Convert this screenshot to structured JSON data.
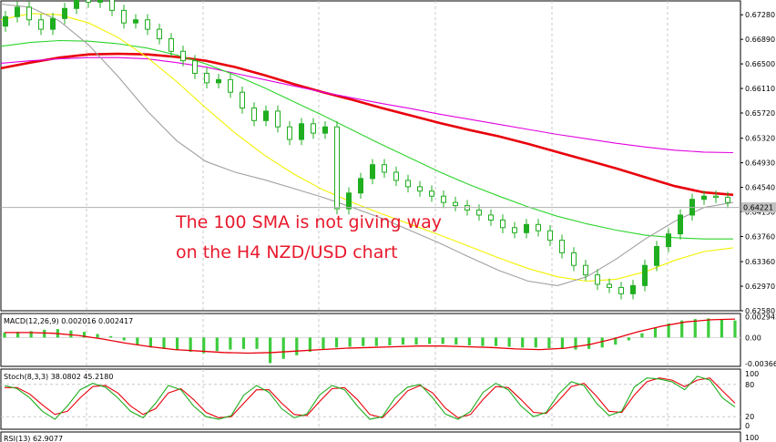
{
  "chart_data": [
    {
      "type": "line",
      "panel": "price",
      "title": "",
      "ylim": [
        0.6258,
        0.675
      ],
      "y_ticks": [
        "0.67280",
        "0.66890",
        "0.66500",
        "0.66110",
        "0.65720",
        "0.65320",
        "0.64930",
        "0.64540",
        "0.64150",
        "0.63760",
        "0.63360",
        "0.62970",
        "0.62580"
      ],
      "current_price": 0.64221,
      "current_price_label": "0.64221",
      "annotation": [
        "The 100 SMA is not giving way",
        "on the H4 NZD/USD chart"
      ],
      "candles": [
        {
          "t": 0,
          "o": 0.671,
          "c": 0.6725
        },
        {
          "t": 1,
          "o": 0.6725,
          "c": 0.674
        },
        {
          "t": 2,
          "o": 0.674,
          "c": 0.672
        },
        {
          "t": 3,
          "o": 0.672,
          "c": 0.6705
        },
        {
          "t": 4,
          "o": 0.6705,
          "c": 0.6722
        },
        {
          "t": 5,
          "o": 0.6722,
          "c": 0.6738
        },
        {
          "t": 6,
          "o": 0.6738,
          "c": 0.6755
        },
        {
          "t": 7,
          "o": 0.6755,
          "c": 0.6748
        },
        {
          "t": 8,
          "o": 0.6748,
          "c": 0.676
        },
        {
          "t": 9,
          "o": 0.676,
          "c": 0.6735
        },
        {
          "t": 10,
          "o": 0.6735,
          "c": 0.6715
        },
        {
          "t": 11,
          "o": 0.6715,
          "c": 0.672
        },
        {
          "t": 12,
          "o": 0.672,
          "c": 0.6705
        },
        {
          "t": 13,
          "o": 0.6705,
          "c": 0.669
        },
        {
          "t": 14,
          "o": 0.669,
          "c": 0.667
        },
        {
          "t": 15,
          "o": 0.667,
          "c": 0.6655
        },
        {
          "t": 16,
          "o": 0.6655,
          "c": 0.6635
        },
        {
          "t": 17,
          "o": 0.6635,
          "c": 0.662
        },
        {
          "t": 18,
          "o": 0.662,
          "c": 0.6625
        },
        {
          "t": 19,
          "o": 0.6625,
          "c": 0.6605
        },
        {
          "t": 20,
          "o": 0.6605,
          "c": 0.658
        },
        {
          "t": 21,
          "o": 0.658,
          "c": 0.656
        },
        {
          "t": 22,
          "o": 0.656,
          "c": 0.6575
        },
        {
          "t": 23,
          "o": 0.6575,
          "c": 0.655
        },
        {
          "t": 24,
          "o": 0.655,
          "c": 0.653
        },
        {
          "t": 25,
          "o": 0.653,
          "c": 0.6555
        },
        {
          "t": 26,
          "o": 0.6555,
          "c": 0.654
        },
        {
          "t": 27,
          "o": 0.654,
          "c": 0.655
        },
        {
          "t": 28,
          "o": 0.655,
          "c": 0.642
        },
        {
          "t": 29,
          "o": 0.642,
          "c": 0.6445
        },
        {
          "t": 30,
          "o": 0.6445,
          "c": 0.6468
        },
        {
          "t": 31,
          "o": 0.6468,
          "c": 0.649
        },
        {
          "t": 32,
          "o": 0.649,
          "c": 0.6478
        },
        {
          "t": 33,
          "o": 0.6478,
          "c": 0.6465
        },
        {
          "t": 34,
          "o": 0.6465,
          "c": 0.6455
        },
        {
          "t": 35,
          "o": 0.6455,
          "c": 0.6448
        },
        {
          "t": 36,
          "o": 0.6448,
          "c": 0.644
        },
        {
          "t": 37,
          "o": 0.644,
          "c": 0.643
        },
        {
          "t": 38,
          "o": 0.643,
          "c": 0.6425
        },
        {
          "t": 39,
          "o": 0.6425,
          "c": 0.6418
        },
        {
          "t": 40,
          "o": 0.6418,
          "c": 0.641
        },
        {
          "t": 41,
          "o": 0.641,
          "c": 0.6402
        },
        {
          "t": 42,
          "o": 0.6402,
          "c": 0.639
        },
        {
          "t": 43,
          "o": 0.639,
          "c": 0.6382
        },
        {
          "t": 44,
          "o": 0.6382,
          "c": 0.6395
        },
        {
          "t": 45,
          "o": 0.6395,
          "c": 0.6385
        },
        {
          "t": 46,
          "o": 0.6385,
          "c": 0.637
        },
        {
          "t": 47,
          "o": 0.637,
          "c": 0.635
        },
        {
          "t": 48,
          "o": 0.635,
          "c": 0.633
        },
        {
          "t": 49,
          "o": 0.633,
          "c": 0.6315
        },
        {
          "t": 50,
          "o": 0.6315,
          "c": 0.63
        },
        {
          "t": 51,
          "o": 0.63,
          "c": 0.6295
        },
        {
          "t": 52,
          "o": 0.6295,
          "c": 0.6285
        },
        {
          "t": 53,
          "o": 0.6285,
          "c": 0.6298
        },
        {
          "t": 54,
          "o": 0.6298,
          "c": 0.633
        },
        {
          "t": 55,
          "o": 0.633,
          "c": 0.636
        },
        {
          "t": 56,
          "o": 0.636,
          "c": 0.638
        },
        {
          "t": 57,
          "o": 0.638,
          "c": 0.641
        },
        {
          "t": 58,
          "o": 0.641,
          "c": 0.6435
        },
        {
          "t": 59,
          "o": 0.6435,
          "c": 0.644
        },
        {
          "t": 60,
          "o": 0.644,
          "c": 0.6438
        },
        {
          "t": 61,
          "o": 0.6438,
          "c": 0.643
        }
      ],
      "series": [
        {
          "name": "",
          "color": "#e8000b",
          "values": [
            0.6643,
            0.6652,
            0.666,
            0.6665,
            0.6666,
            0.6665,
            0.6661,
            0.6655,
            0.6645,
            0.6632,
            0.6618,
            0.6605,
            0.6593,
            0.658,
            0.6568,
            0.6556,
            0.6545,
            0.6535,
            0.6523,
            0.651,
            0.6497,
            0.6484,
            0.647,
            0.6456,
            0.6446,
            0.6442
          ]
        },
        {
          "name": "",
          "color": "#e000e0",
          "values": [
            0.6651,
            0.6655,
            0.6658,
            0.666,
            0.666,
            0.6658,
            0.6652,
            0.6645,
            0.6635,
            0.6625,
            0.6615,
            0.6605,
            0.6596,
            0.6587,
            0.6579,
            0.657,
            0.6562,
            0.6554,
            0.6546,
            0.6538,
            0.6531,
            0.6524,
            0.6518,
            0.6513,
            0.651,
            0.6509
          ]
        },
        {
          "name": "",
          "color": "#2bd42b",
          "values": [
            0.6678,
            0.6684,
            0.6687,
            0.6686,
            0.6682,
            0.6675,
            0.6664,
            0.665,
            0.6632,
            0.6612,
            0.659,
            0.6568,
            0.6545,
            0.6522,
            0.65,
            0.6478,
            0.6458,
            0.644,
            0.6423,
            0.6408,
            0.6396,
            0.6386,
            0.6378,
            0.6374,
            0.6372,
            0.6372
          ]
        },
        {
          "name": "",
          "color": "#f2f200",
          "values": [
            0.672,
            0.673,
            0.6728,
            0.6715,
            0.6692,
            0.666,
            0.6622,
            0.658,
            0.654,
            0.6505,
            0.6475,
            0.645,
            0.643,
            0.6412,
            0.6395,
            0.6378,
            0.636,
            0.6342,
            0.6325,
            0.6312,
            0.6305,
            0.6308,
            0.632,
            0.6338,
            0.6352,
            0.6358
          ]
        },
        {
          "name": "",
          "color": "#a0a0a0",
          "values": [
            0.6745,
            0.674,
            0.6718,
            0.668,
            0.663,
            0.6575,
            0.6528,
            0.6495,
            0.6478,
            0.6466,
            0.6452,
            0.6438,
            0.6422,
            0.6405,
            0.6385,
            0.6365,
            0.6343,
            0.6322,
            0.6305,
            0.6298,
            0.6312,
            0.634,
            0.6372,
            0.64,
            0.6422,
            0.643
          ]
        }
      ]
    },
    {
      "type": "bar",
      "panel": "macd",
      "label": "MACD(12,26,9) 0.002016 0.002417",
      "y_ticks": [
        "0.002942",
        "0.00",
        "-0.003666"
      ],
      "values": [
        0.0007,
        0.0008,
        0.0009,
        0.0011,
        0.0012,
        0.001,
        0.0008,
        0.0005,
        0.0002,
        -0.0004,
        -0.001,
        -0.0014,
        -0.0016,
        -0.0018,
        -0.002,
        -0.0022,
        -0.0019,
        -0.0017,
        -0.0016,
        -0.0016,
        -0.0036,
        -0.003,
        -0.0025,
        -0.002,
        -0.0016,
        -0.0014,
        -0.0013,
        -0.0012,
        -0.0012,
        -0.0011,
        -0.001,
        -0.001,
        -0.0009,
        -0.0009,
        -0.001,
        -0.0011,
        -0.0012,
        -0.0012,
        -0.0013,
        -0.0014,
        -0.0014,
        -0.0015,
        -0.0016,
        -0.0017,
        -0.0016,
        -0.0014,
        -0.001,
        -0.0004,
        0.0006,
        0.0014,
        0.002,
        0.0024,
        0.0026,
        0.0027,
        0.0026,
        0.0024
      ],
      "signal": [
        0.0007,
        0.0007,
        0.0006,
        0.0003,
        -0.0002,
        -0.0008,
        -0.0013,
        -0.0017,
        -0.0019,
        -0.0021,
        -0.0022,
        -0.0021,
        -0.0019,
        -0.0017,
        -0.0015,
        -0.0014,
        -0.0013,
        -0.0012,
        -0.0012,
        -0.0013,
        -0.0014,
        -0.0016,
        -0.0017,
        -0.0015,
        -0.001,
        -0.0002,
        0.0008,
        0.0016,
        0.0022,
        0.0025,
        0.0026
      ]
    },
    {
      "type": "line",
      "panel": "stoch",
      "label": "Stoch(8,3,3) 38.0802 45.2180",
      "y_ticks": [
        "100",
        "80",
        "20",
        "0"
      ],
      "main": [
        78,
        72,
        55,
        30,
        15,
        40,
        70,
        82,
        75,
        55,
        30,
        18,
        45,
        78,
        70,
        40,
        20,
        15,
        22,
        60,
        78,
        65,
        35,
        18,
        25,
        60,
        78,
        70,
        40,
        15,
        20,
        55,
        75,
        80,
        55,
        25,
        15,
        30,
        65,
        82,
        70,
        40,
        20,
        28,
        62,
        85,
        78,
        45,
        22,
        30,
        75,
        92,
        90,
        85,
        70,
        95,
        88,
        55,
        38
      ],
      "signal": [
        74,
        74,
        62,
        42,
        24,
        30,
        55,
        76,
        78,
        64,
        40,
        24,
        35,
        64,
        72,
        52,
        28,
        18,
        20,
        45,
        70,
        70,
        45,
        24,
        22,
        48,
        72,
        74,
        52,
        24,
        18,
        42,
        68,
        78,
        64,
        36,
        18,
        24,
        52,
        76,
        74,
        52,
        28,
        26,
        50,
        76,
        82,
        58,
        30,
        28,
        60,
        85,
        92,
        88,
        76,
        88,
        92,
        68,
        45
      ]
    },
    {
      "type": "line",
      "panel": "rsi",
      "label": "RSI(13) 62.9077",
      "y_ticks": [
        "100"
      ]
    }
  ]
}
